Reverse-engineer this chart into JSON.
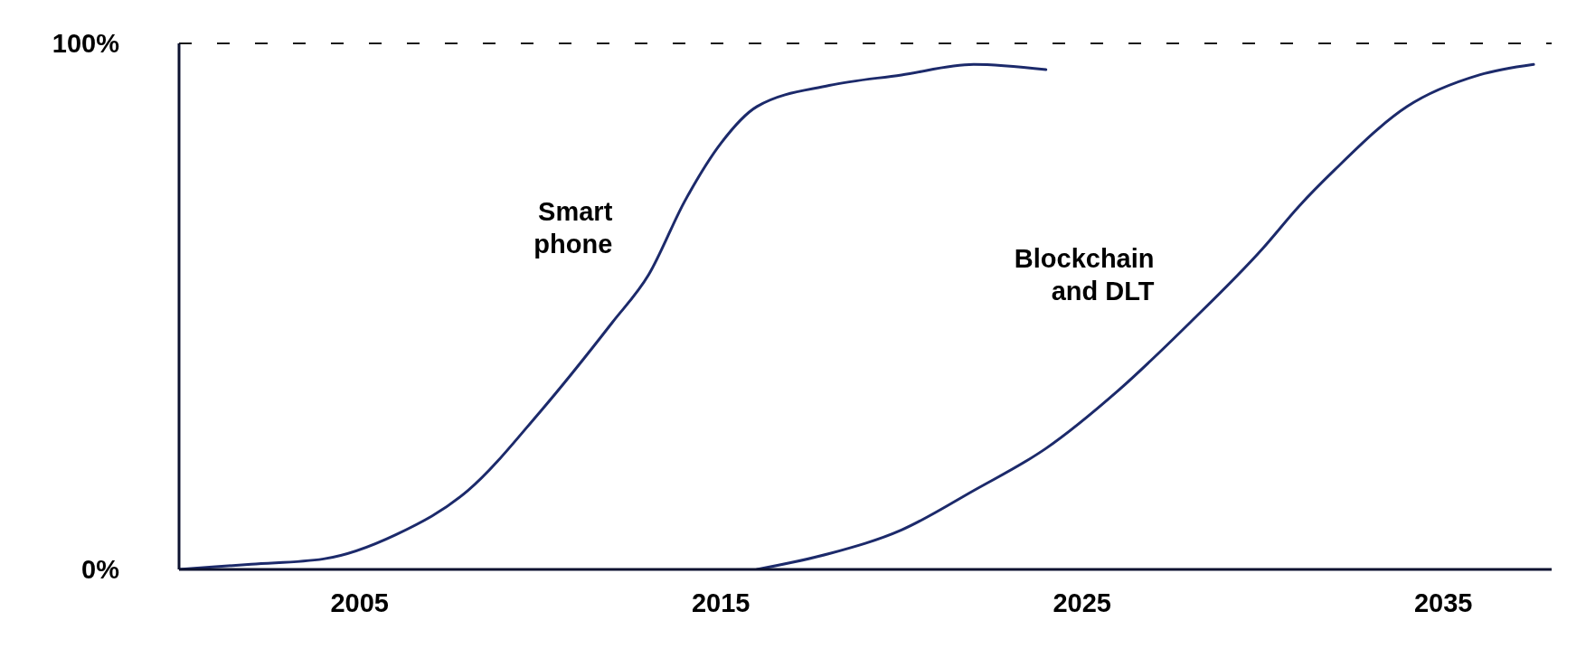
{
  "chart_data": {
    "type": "line",
    "xlim": [
      2000,
      2038
    ],
    "xticks": [
      2005,
      2015,
      2025,
      2035
    ],
    "ylim": [
      0,
      100
    ],
    "yticks": [
      {
        "value": 0,
        "label": "0%"
      },
      {
        "value": 100,
        "label": "100%"
      }
    ],
    "marker": "none",
    "line_style": "solid",
    "series": [
      {
        "name": "Smart phone",
        "color": "#1c2a6b",
        "x": [
          2000,
          2002,
          2004,
          2006,
          2008,
          2010,
          2012,
          2013,
          2014,
          2015,
          2016,
          2018,
          2020,
          2022,
          2024
        ],
        "values": [
          0,
          1,
          2,
          6.6,
          15,
          30,
          47,
          56,
          70,
          81,
          88,
          92,
          94,
          96,
          95
        ]
      },
      {
        "name": "Blockchain and DLT",
        "color": "#1c2a6b",
        "x": [
          2016,
          2018,
          2020,
          2022,
          2024,
          2026,
          2028,
          2030,
          2031,
          2032,
          2034,
          2036,
          2037.5
        ],
        "values": [
          0,
          3,
          7.5,
          15,
          23,
          34,
          47,
          61,
          69,
          76,
          88,
          94,
          96
        ]
      }
    ],
    "ref_lines": [
      {
        "axis": "y",
        "value": 100,
        "color": "#1a1a1a",
        "line_style": "dashed"
      }
    ]
  }
}
